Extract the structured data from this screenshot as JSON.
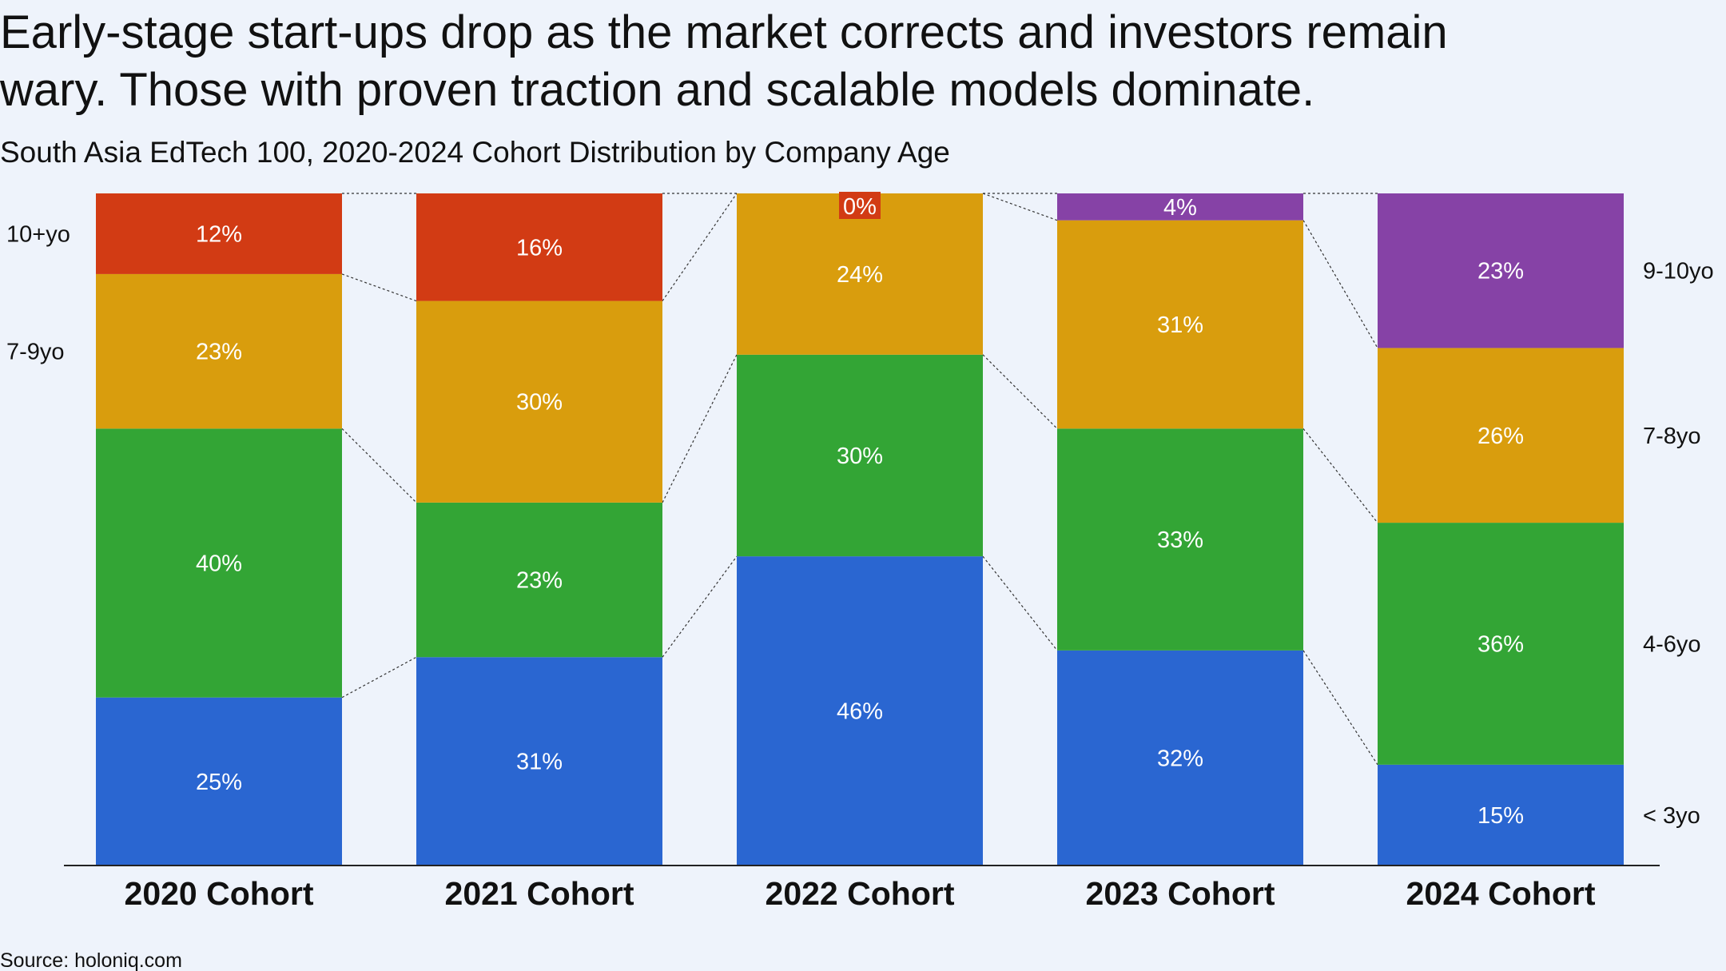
{
  "title_lines": [
    "Early-stage start-ups drop as the market corrects and investors remain",
    "wary. Those with proven traction and scalable models dominate."
  ],
  "subtitle": "South Asia EdTech 100, 2020-2024 Cohort Distribution by Company Age",
  "source": "Source: holoniq.com",
  "colors": {
    "background": "#eef3fb",
    "blue": "#2a66d1",
    "green": "#33a535",
    "orange": "#d99d0d",
    "red": "#d23b14",
    "purple": "#8642a6",
    "connector": "#333333"
  },
  "chart_data": {
    "type": "bar",
    "stacked": true,
    "normalized_percent": true,
    "categories": [
      "2020 Cohort",
      "2021 Cohort",
      "2022 Cohort",
      "2023 Cohort",
      "2024 Cohort"
    ],
    "series": [
      {
        "name": "< 3yo",
        "color": "blue",
        "values": [
          25,
          31,
          46,
          32,
          15
        ],
        "labels": [
          "25%",
          "31%",
          "46%",
          "32%",
          "15%"
        ]
      },
      {
        "name": "",
        "color": "green",
        "values": [
          40,
          23,
          30,
          33,
          36
        ],
        "labels": [
          "40%",
          "23%",
          "30%",
          "33%",
          "36%"
        ]
      },
      {
        "name": "",
        "color": "orange",
        "values": [
          23,
          30,
          24,
          31,
          26
        ],
        "labels": [
          "23%",
          "30%",
          "24%",
          "31%",
          "26%"
        ]
      },
      {
        "name": "",
        "color": "red",
        "values": [
          12,
          16,
          0,
          null,
          null
        ],
        "labels": [
          "12%",
          "16%",
          "0%",
          null,
          null
        ]
      },
      {
        "name": "",
        "color": "purple",
        "values": [
          null,
          null,
          null,
          4,
          23
        ],
        "labels": [
          null,
          null,
          null,
          "4%",
          "23%"
        ]
      }
    ],
    "left_labels": [
      {
        "text": "10+yo",
        "series": 3
      },
      {
        "text": "7-9yo",
        "series": 2
      }
    ],
    "right_labels": [
      {
        "text": "9-10yo",
        "series": 4
      },
      {
        "text": "7-8yo",
        "series": 2
      },
      {
        "text": "4-6yo",
        "series": 1
      },
      {
        "text": "< 3yo",
        "series": 0
      }
    ],
    "connectors": "dotted lines linking segment boundaries between adjacent bars",
    "ylim": [
      0,
      100
    ],
    "grid": false,
    "legend": "none"
  }
}
